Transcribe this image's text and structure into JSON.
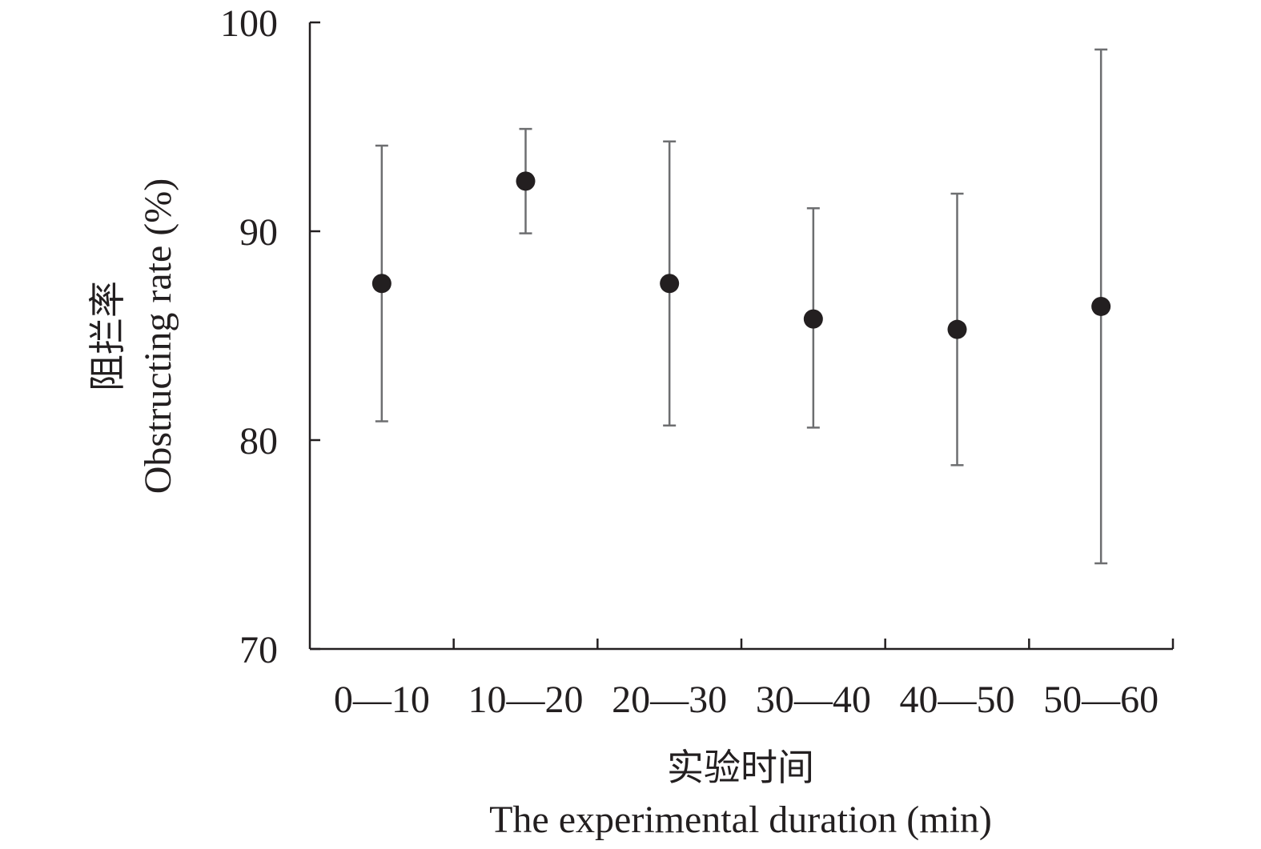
{
  "chart_data": {
    "type": "scatter",
    "title": "",
    "xlabel_cn": "实验时间",
    "xlabel": "The experimental duration (min)",
    "ylabel_cn": "阻拦率",
    "ylabel": "Obstructing rate (%)",
    "ylim": [
      70,
      100
    ],
    "yticks": [
      70,
      80,
      90,
      100
    ],
    "ytick_labels": [
      "70",
      "80",
      "90",
      "100"
    ],
    "categories": [
      "0—10",
      "10—20",
      "20—30",
      "30—40",
      "40—50",
      "50—60"
    ],
    "values": [
      87.5,
      92.4,
      87.5,
      85.8,
      85.3,
      86.4
    ],
    "error_upper": [
      94.1,
      94.9,
      94.3,
      91.1,
      91.8,
      98.7
    ],
    "error_lower": [
      80.9,
      89.9,
      80.7,
      80.6,
      78.8,
      74.1
    ],
    "grid": false,
    "colors": {
      "point": "#231f20",
      "errorbar": "#6d6e70",
      "axis": "#231f20"
    }
  }
}
